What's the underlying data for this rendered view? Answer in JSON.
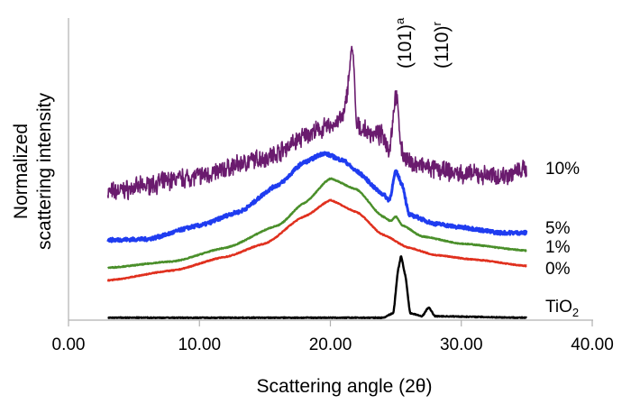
{
  "chart_data": {
    "type": "line",
    "title": "",
    "xlabel": "Scattering angle (2θ)",
    "ylabel": [
      "Normalized",
      "scattering intensity"
    ],
    "xlim": [
      0,
      40
    ],
    "ylim": [
      0,
      100
    ],
    "x_ticks": [
      "0.00",
      "10.00",
      "20.00",
      "30.00",
      "40.00"
    ],
    "x_tick_values": [
      0,
      10,
      20,
      30,
      40
    ],
    "y_ticks_shown": false,
    "grid": false,
    "legend": "inline labels at right end of each curve",
    "annotations": [
      {
        "text": "(101)",
        "sup": "a",
        "x": 25.4
      },
      {
        "text": "(110)",
        "sup": "r",
        "x": 27.4
      }
    ],
    "series": [
      {
        "name": "10%",
        "color": "#6a1b6e",
        "noisy": true,
        "x": [
          3,
          10,
          15,
          19,
          20,
          21,
          21.7,
          22,
          23,
          24,
          24.5,
          25,
          25.5,
          26,
          28,
          30,
          33,
          35
        ],
        "y": [
          42.2,
          47.6,
          53.6,
          62.6,
          64.1,
          67,
          90.4,
          64,
          61.7,
          61,
          56.6,
          74.5,
          55,
          52,
          49.7,
          48.2,
          47.6,
          49.7
        ]
      },
      {
        "name": "5%",
        "color": "#1f3cf0",
        "noisy": true,
        "x": [
          3,
          6,
          10,
          13,
          16,
          18,
          19.5,
          21,
          22,
          24,
          24.5,
          25,
          25.5,
          26,
          28,
          30,
          33,
          35
        ],
        "y": [
          26.3,
          26.6,
          31.1,
          35.6,
          44.6,
          52.1,
          55.1,
          52.7,
          49.1,
          41.6,
          39.5,
          49.1,
          44.6,
          34.7,
          31.7,
          30.5,
          28.7,
          28.7
        ]
      },
      {
        "name": "1%",
        "color": "#4a8f2a",
        "noisy": false,
        "x": [
          3,
          8,
          12,
          16,
          18,
          20,
          22,
          24,
          24.6,
          25,
          25.5,
          27,
          30,
          35
        ],
        "y": [
          17.1,
          19.2,
          23.7,
          31.1,
          38.6,
          46.7,
          43.1,
          34.1,
          32.6,
          34.1,
          31.1,
          27.5,
          25.1,
          22.8
        ]
      },
      {
        "name": "0%",
        "color": "#e0301e",
        "noisy": false,
        "x": [
          3,
          8,
          12,
          15,
          18,
          20,
          22,
          24,
          26,
          28,
          31,
          35
        ],
        "y": [
          12.9,
          16.2,
          20.7,
          25.1,
          34.1,
          39.5,
          35.6,
          28.1,
          23.7,
          21.3,
          19.8,
          17.7
        ]
      },
      {
        "name": "TiO",
        "name_sub": "2",
        "color": "#000000",
        "noisy": false,
        "x": [
          3,
          24,
          24.8,
          25.2,
          25.4,
          25.7,
          26.1,
          27,
          27.5,
          28,
          35
        ],
        "y": [
          0.5,
          0.5,
          2,
          17,
          21,
          15,
          2,
          1,
          3.9,
          1,
          0.5
        ]
      }
    ]
  }
}
